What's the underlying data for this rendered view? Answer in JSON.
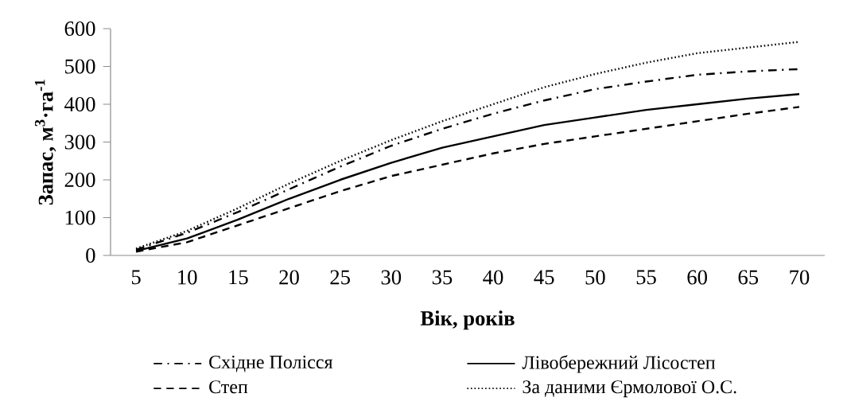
{
  "chart_data": {
    "type": "line",
    "xlabel": "Вік, років",
    "ylabel": "Запас, м$^{3}$·га$^{-1}$",
    "categories": [
      "5",
      "10",
      "15",
      "20",
      "25",
      "30",
      "35",
      "40",
      "45",
      "50",
      "55",
      "60",
      "65",
      "70"
    ],
    "ylim": [
      0,
      600
    ],
    "yticks": [
      0,
      100,
      200,
      300,
      400,
      500,
      600
    ],
    "grid": false,
    "legend": "bottom",
    "marker": "none",
    "series": [
      {
        "name": "Східне Полісся",
        "color": "#000000",
        "line_style": "dashdot",
        "values": [
          15,
          60,
          115,
          175,
          235,
          290,
          335,
          375,
          410,
          440,
          460,
          478,
          487,
          493
        ]
      },
      {
        "name": "Лівобережний Лісостеп",
        "color": "#000000",
        "line_style": "solid",
        "values": [
          12,
          45,
          95,
          150,
          200,
          245,
          285,
          315,
          345,
          365,
          385,
          400,
          415,
          427
        ]
      },
      {
        "name": "Степ",
        "color": "#000000",
        "line_style": "dashed",
        "values": [
          10,
          35,
          80,
          125,
          170,
          210,
          240,
          270,
          295,
          315,
          335,
          355,
          375,
          393
        ]
      },
      {
        "name": "За даними Єрмолової О.С.",
        "color": "#000000",
        "line_style": "dotted",
        "values": [
          18,
          65,
          125,
          190,
          250,
          305,
          355,
          400,
          445,
          480,
          510,
          535,
          550,
          565
        ]
      }
    ]
  }
}
